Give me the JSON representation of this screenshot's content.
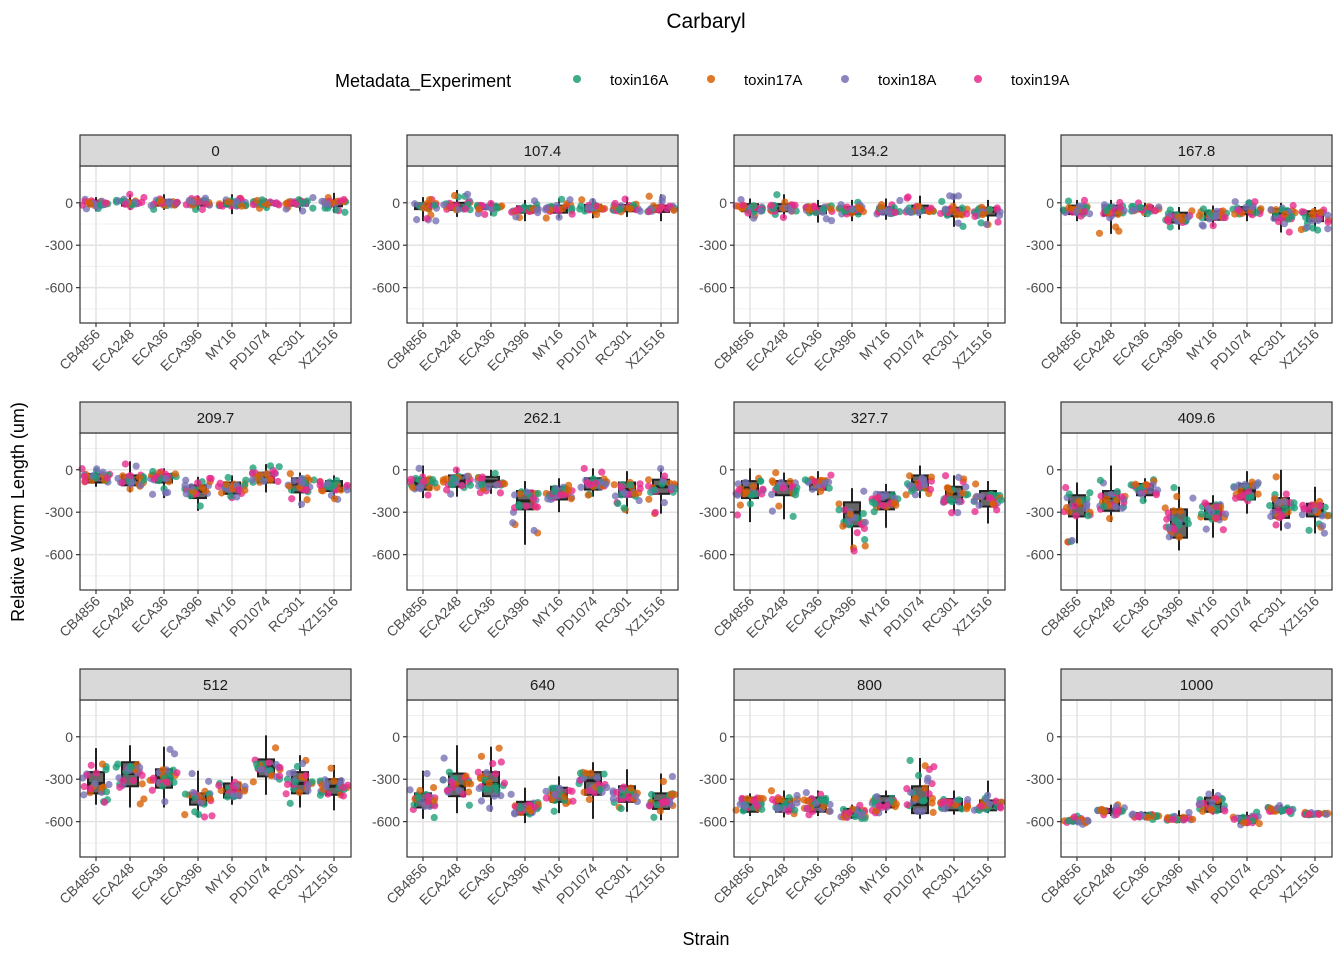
{
  "chart_data": {
    "type": "boxplot+jitter",
    "title": "Carbaryl",
    "xlabel": "Strain",
    "ylabel": "Relative Worm Length (um)",
    "ylim": [
      -850,
      260
    ],
    "yticks": [
      0,
      -300,
      -600
    ],
    "grid": true,
    "legend": {
      "title": "Metadata_Experiment",
      "placement": "top",
      "entries": [
        {
          "name": "toxin16A",
          "color": "#1B9E77"
        },
        {
          "name": "toxin17A",
          "color": "#D95F02"
        },
        {
          "name": "toxin18A",
          "color": "#7570B3"
        },
        {
          "name": "toxin19A",
          "color": "#E7298A"
        }
      ]
    },
    "strains": [
      "CB4856",
      "ECA248",
      "ECA36",
      "ECA396",
      "MY16",
      "PD1074",
      "RC301",
      "XZ1516"
    ],
    "box_stat_order": [
      "min",
      "q1",
      "median",
      "q3",
      "max"
    ],
    "panels": [
      {
        "dose": "0",
        "boxes": [
          [
            -60,
            -20,
            0,
            15,
            40
          ],
          [
            -50,
            -20,
            0,
            15,
            60
          ],
          [
            -50,
            -20,
            5,
            20,
            60
          ],
          [
            -50,
            -20,
            0,
            20,
            50
          ],
          [
            -80,
            -25,
            -5,
            15,
            60
          ],
          [
            -40,
            -15,
            0,
            10,
            30
          ],
          [
            -60,
            -20,
            0,
            15,
            40
          ],
          [
            -70,
            -25,
            0,
            15,
            70
          ]
        ]
      },
      {
        "dose": "107.4",
        "boxes": [
          [
            -130,
            -45,
            -25,
            -5,
            40
          ],
          [
            -100,
            -50,
            -30,
            0,
            90
          ],
          [
            -90,
            -45,
            -30,
            -15,
            10
          ],
          [
            -130,
            -70,
            -45,
            -25,
            20
          ],
          [
            -110,
            -70,
            -45,
            -20,
            30
          ],
          [
            -110,
            -60,
            -40,
            -15,
            30
          ],
          [
            -100,
            -60,
            -40,
            -15,
            40
          ],
          [
            -130,
            -65,
            -45,
            -20,
            60
          ]
        ]
      },
      {
        "dose": "134.2",
        "boxes": [
          [
            -110,
            -60,
            -40,
            -10,
            30
          ],
          [
            -110,
            -60,
            -40,
            -10,
            60
          ],
          [
            -140,
            -75,
            -50,
            -25,
            20
          ],
          [
            -130,
            -80,
            -55,
            -30,
            20
          ],
          [
            -120,
            -80,
            -55,
            -30,
            30
          ],
          [
            -110,
            -70,
            -45,
            -20,
            50
          ],
          [
            -170,
            -95,
            -65,
            -35,
            60
          ],
          [
            -160,
            -90,
            -60,
            -35,
            20
          ]
        ]
      },
      {
        "dose": "167.8",
        "boxes": [
          [
            -130,
            -80,
            -50,
            -20,
            20
          ],
          [
            -220,
            -90,
            -50,
            -20,
            20
          ],
          [
            -100,
            -60,
            -40,
            -25,
            0
          ],
          [
            -190,
            -140,
            -100,
            -70,
            -30
          ],
          [
            -170,
            -120,
            -90,
            -60,
            -20
          ],
          [
            -130,
            -80,
            -50,
            -30,
            10
          ],
          [
            -210,
            -120,
            -80,
            -45,
            0
          ],
          [
            -200,
            -130,
            -90,
            -60,
            -30
          ]
        ]
      },
      {
        "dose": "209.7",
        "boxes": [
          [
            -120,
            -90,
            -60,
            -30,
            10
          ],
          [
            -160,
            -110,
            -70,
            -40,
            60
          ],
          [
            -200,
            -90,
            -50,
            -30,
            10
          ],
          [
            -290,
            -200,
            -150,
            -110,
            -50
          ],
          [
            -200,
            -170,
            -130,
            -90,
            -40
          ],
          [
            -160,
            -90,
            -50,
            -20,
            40
          ],
          [
            -270,
            -160,
            -100,
            -60,
            -20
          ],
          [
            -210,
            -150,
            -120,
            -80,
            -40
          ]
        ]
      },
      {
        "dose": "262.1",
        "boxes": [
          [
            -200,
            -140,
            -100,
            -60,
            30
          ],
          [
            -190,
            -120,
            -80,
            -40,
            10
          ],
          [
            -170,
            -120,
            -80,
            -50,
            0
          ],
          [
            -530,
            -280,
            -220,
            -150,
            -80
          ],
          [
            -300,
            -210,
            -170,
            -120,
            -60
          ],
          [
            -190,
            -140,
            -100,
            -60,
            10
          ],
          [
            -310,
            -190,
            -140,
            -90,
            -10
          ],
          [
            -310,
            -170,
            -120,
            -70,
            10
          ]
        ]
      },
      {
        "dose": "327.7",
        "boxes": [
          [
            -370,
            -200,
            -130,
            -80,
            10
          ],
          [
            -350,
            -180,
            -120,
            -80,
            -20
          ],
          [
            -180,
            -140,
            -100,
            -70,
            -10
          ],
          [
            -580,
            -400,
            -300,
            -230,
            -130
          ],
          [
            -410,
            -280,
            -220,
            -160,
            -100
          ],
          [
            -200,
            -140,
            -90,
            -40,
            30
          ],
          [
            -310,
            -230,
            -170,
            -120,
            -40
          ],
          [
            -380,
            -260,
            -200,
            -150,
            -80
          ]
        ]
      },
      {
        "dose": "409.6",
        "boxes": [
          [
            -520,
            -330,
            -250,
            -180,
            -90
          ],
          [
            -370,
            -290,
            -200,
            -150,
            30
          ],
          [
            -230,
            -180,
            -140,
            -100,
            -60
          ],
          [
            -570,
            -480,
            -380,
            -280,
            -120
          ],
          [
            -480,
            -350,
            -300,
            -240,
            -180
          ],
          [
            -310,
            -210,
            -150,
            -100,
            -10
          ],
          [
            -430,
            -340,
            -280,
            -200,
            0
          ],
          [
            -450,
            -330,
            -290,
            -240,
            -120
          ]
        ]
      },
      {
        "dose": "512",
        "boxes": [
          [
            -480,
            -400,
            -330,
            -250,
            -80
          ],
          [
            -500,
            -350,
            -260,
            -180,
            -60
          ],
          [
            -500,
            -360,
            -290,
            -230,
            -70
          ],
          [
            -570,
            -480,
            -440,
            -400,
            -240
          ],
          [
            -480,
            -430,
            -380,
            -330,
            -280
          ],
          [
            -410,
            -280,
            -210,
            -160,
            10
          ],
          [
            -500,
            -400,
            -330,
            -250,
            -130
          ],
          [
            -520,
            -410,
            -350,
            -300,
            -200
          ]
        ]
      },
      {
        "dose": "640",
        "boxes": [
          [
            -580,
            -500,
            -450,
            -400,
            -240
          ],
          [
            -540,
            -420,
            -350,
            -260,
            -60
          ],
          [
            -530,
            -420,
            -330,
            -250,
            -70
          ],
          [
            -610,
            -550,
            -500,
            -460,
            -360
          ],
          [
            -540,
            -460,
            -410,
            -360,
            -280
          ],
          [
            -580,
            -410,
            -310,
            -250,
            -180
          ],
          [
            -530,
            -460,
            -410,
            -350,
            -230
          ],
          [
            -590,
            -510,
            -460,
            -400,
            -260
          ]
        ]
      },
      {
        "dose": "800",
        "boxes": [
          [
            -560,
            -530,
            -480,
            -430,
            -400
          ],
          [
            -570,
            -530,
            -470,
            -440,
            -380
          ],
          [
            -560,
            -530,
            -490,
            -430,
            -380
          ],
          [
            -580,
            -570,
            -540,
            -510,
            -480
          ],
          [
            -540,
            -500,
            -470,
            -420,
            -380
          ],
          [
            -580,
            -540,
            -480,
            -350,
            -150
          ],
          [
            -550,
            -520,
            -470,
            -440,
            -380
          ],
          [
            -540,
            -520,
            -490,
            -450,
            -310
          ]
        ]
      },
      {
        "dose": "1000",
        "boxes": [
          [
            -620,
            -610,
            -600,
            -590,
            -560
          ],
          [
            -560,
            -540,
            -520,
            -510,
            -480
          ],
          [
            -590,
            -570,
            -550,
            -540,
            -530
          ],
          [
            -610,
            -590,
            -580,
            -560,
            -520
          ],
          [
            -550,
            -530,
            -470,
            -430,
            -370
          ],
          [
            -630,
            -610,
            -590,
            -560,
            -530
          ],
          [
            -550,
            -530,
            -520,
            -500,
            -480
          ],
          [
            -560,
            -550,
            -545,
            -540,
            -530
          ]
        ]
      }
    ]
  }
}
